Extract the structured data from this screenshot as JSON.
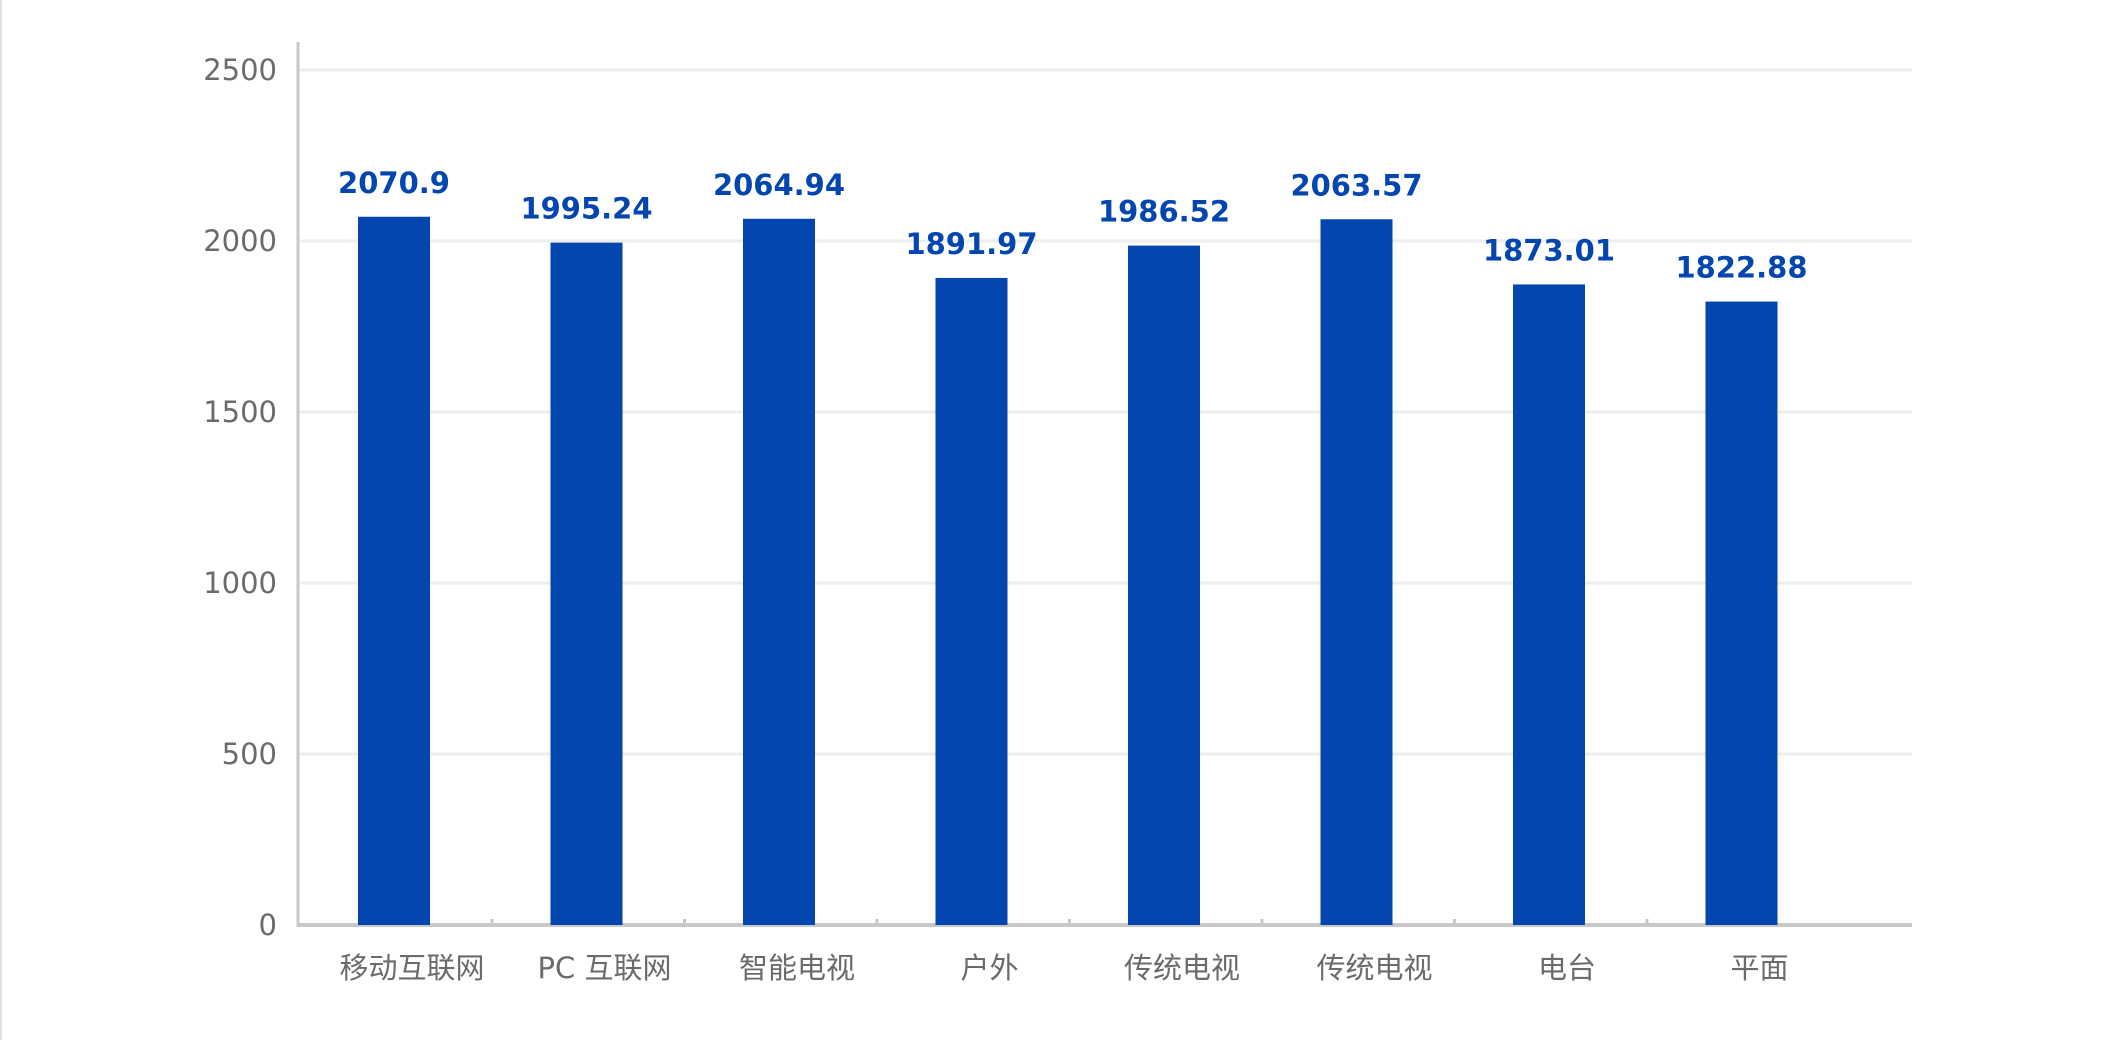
{
  "chart_data": {
    "type": "bar",
    "categories": [
      "移动互联网",
      "PC 互联网",
      "智能电视",
      "户外",
      "传统电视",
      "传统电视",
      "电台",
      "平面"
    ],
    "values": [
      2070.9,
      1995.24,
      2064.94,
      1891.97,
      1986.52,
      2063.57,
      1873.01,
      1822.88
    ],
    "data_labels": [
      "2070.9",
      "1995.24",
      "2064.94",
      "1891.97",
      "1986.52",
      "2063.57",
      "1873.01",
      "1822.88"
    ],
    "y_ticks": [
      "0",
      "500",
      "1000",
      "1500",
      "2000",
      "2500"
    ],
    "ylim": [
      0,
      2500
    ],
    "grid": true,
    "legend": "none",
    "title": "",
    "xlabel": "",
    "ylabel": "",
    "colors": {
      "bar": "#0346b0",
      "data_label": "#0346b0",
      "grid": "#eeeeee",
      "axis": "#c8c8c8",
      "text": "#6b6b6b"
    }
  }
}
